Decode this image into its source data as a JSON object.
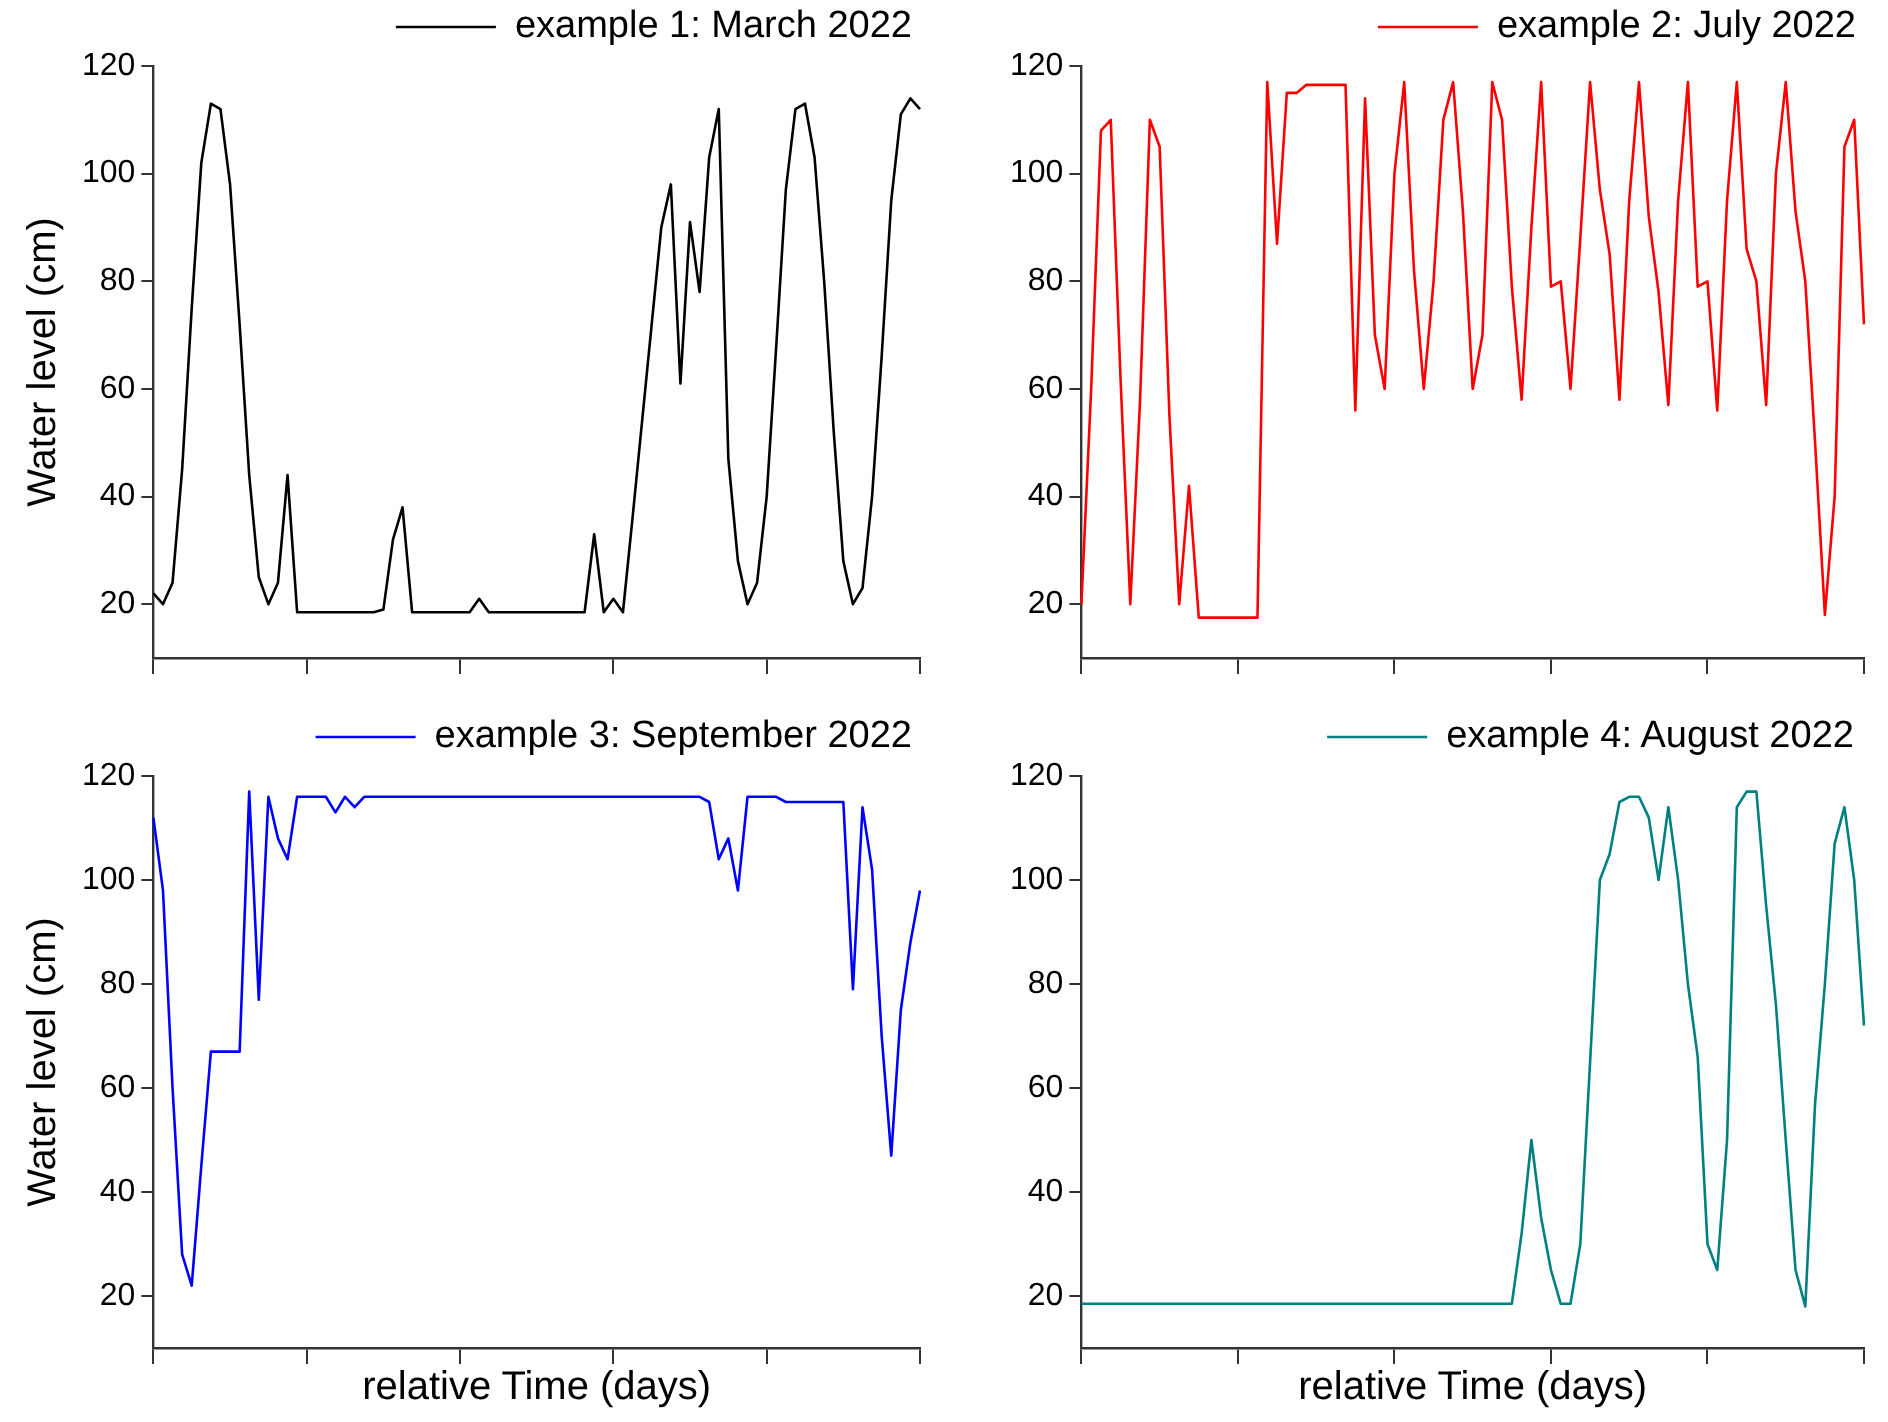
{
  "chart_data": [
    {
      "type": "line",
      "ylabel": "Water level (cm)",
      "categories": [
        null,
        null,
        null,
        null,
        null,
        null,
        null,
        null,
        null,
        null,
        null,
        null,
        null,
        null,
        null,
        null,
        null,
        null,
        null,
        null,
        null,
        null,
        null,
        null,
        null,
        null,
        null,
        null,
        null,
        null,
        null,
        null,
        null,
        null,
        null,
        null,
        null,
        null,
        null,
        null,
        null,
        null,
        null,
        null,
        null,
        null,
        null,
        null,
        null,
        null,
        null,
        null,
        null,
        null,
        null,
        null,
        null,
        null,
        null,
        null,
        null,
        null,
        null,
        null,
        null,
        null,
        null,
        null,
        null,
        null,
        null,
        null,
        null,
        null,
        null,
        null,
        null,
        null,
        null,
        null,
        null
      ],
      "series": [
        {
          "name": "example 1: March 2022",
          "color": "#000000",
          "values": [
            22,
            20,
            24,
            45,
            75,
            102,
            113,
            112,
            98,
            72,
            44,
            25,
            20,
            24,
            44,
            18.5,
            18.5,
            18.5,
            18.5,
            18.5,
            18.5,
            18.5,
            18.5,
            18.5,
            19,
            32,
            38,
            18.5,
            18.5,
            18.5,
            18.5,
            18.5,
            18.5,
            18.5,
            21,
            18.5,
            18.5,
            18.5,
            18.5,
            18.5,
            18.5,
            18.5,
            18.5,
            18.5,
            18.5,
            18.5,
            33,
            18.5,
            21,
            18.5,
            36,
            54,
            72,
            90,
            98,
            61,
            91,
            78,
            103,
            112,
            47,
            28,
            20,
            24,
            40,
            68,
            97,
            112,
            113,
            103,
            80,
            52,
            28,
            20,
            23,
            40,
            66,
            95,
            111,
            114,
            112
          ]
        }
      ],
      "ylim": [
        10,
        120
      ],
      "yticks": [
        20,
        40,
        60,
        80,
        100,
        120
      ],
      "grid": false,
      "legend": "top right",
      "marker": "none",
      "line_style": "solid",
      "tick_labels": "y"
    },
    {
      "type": "line",
      "categories": [
        null,
        null,
        null,
        null,
        null,
        null,
        null,
        null,
        null,
        null,
        null,
        null,
        null,
        null,
        null,
        null,
        null,
        null,
        null,
        null,
        null,
        null,
        null,
        null,
        null,
        null,
        null,
        null,
        null,
        null,
        null,
        null,
        null,
        null,
        null,
        null,
        null,
        null,
        null,
        null,
        null,
        null,
        null,
        null,
        null,
        null,
        null,
        null,
        null,
        null,
        null,
        null,
        null,
        null,
        null,
        null,
        null,
        null,
        null,
        null,
        null,
        null,
        null,
        null,
        null,
        null,
        null,
        null,
        null,
        null,
        null,
        null,
        null,
        null,
        null,
        null,
        null,
        null,
        null,
        null,
        null
      ],
      "series": [
        {
          "name": "example 2: July 2022",
          "color": "#ff0000",
          "values": [
            20,
            60,
            108,
            110,
            62,
            20,
            58,
            110,
            105,
            55,
            20,
            42,
            17.5,
            17.5,
            17.5,
            17.5,
            17.5,
            17.5,
            17.5,
            117,
            87,
            115,
            115,
            116.5,
            116.5,
            116.5,
            116.5,
            116.5,
            56,
            114,
            70,
            60,
            100,
            117,
            82,
            60,
            80,
            110,
            117,
            93,
            60,
            70,
            117,
            110,
            79,
            58,
            90,
            117,
            79,
            80,
            60,
            88,
            117,
            97,
            85,
            58,
            95,
            117,
            92,
            78,
            57,
            95,
            117,
            79,
            80,
            56,
            95,
            117,
            86,
            80,
            57,
            100,
            117,
            93,
            80,
            50,
            18,
            40,
            105,
            110,
            72
          ]
        }
      ],
      "ylim": [
        10,
        120
      ],
      "yticks": [
        20,
        40,
        60,
        80,
        100,
        120
      ],
      "grid": false,
      "legend": "top right",
      "marker": "none",
      "line_style": "solid",
      "tick_labels": "y"
    },
    {
      "type": "line",
      "xlabel": "relative Time (days)",
      "ylabel": "Water level (cm)",
      "categories": [
        null,
        null,
        null,
        null,
        null,
        null,
        null,
        null,
        null,
        null,
        null,
        null,
        null,
        null,
        null,
        null,
        null,
        null,
        null,
        null,
        null,
        null,
        null,
        null,
        null,
        null,
        null,
        null,
        null,
        null,
        null,
        null,
        null,
        null,
        null,
        null,
        null,
        null,
        null,
        null,
        null,
        null,
        null,
        null,
        null,
        null,
        null,
        null,
        null,
        null,
        null,
        null,
        null,
        null,
        null,
        null,
        null,
        null,
        null,
        null,
        null,
        null,
        null,
        null,
        null,
        null,
        null,
        null,
        null,
        null,
        null,
        null,
        null,
        null,
        null,
        null,
        null,
        null,
        null,
        null,
        null
      ],
      "series": [
        {
          "name": "example 3: September 2022",
          "color": "#0000ff",
          "values": [
            112,
            98,
            60,
            28,
            22,
            45,
            67,
            67,
            67,
            67,
            117,
            77,
            116,
            108,
            104,
            116,
            116,
            116,
            116,
            113,
            116,
            114,
            116,
            116,
            116,
            116,
            116,
            116,
            116,
            116,
            116,
            116,
            116,
            116,
            116,
            116,
            116,
            116,
            116,
            116,
            116,
            116,
            116,
            116,
            116,
            116,
            116,
            116,
            116,
            116,
            116,
            116,
            116,
            116,
            116,
            116,
            116,
            116,
            115,
            104,
            108,
            98,
            116,
            116,
            116,
            116,
            115,
            115,
            115,
            115,
            115,
            115,
            115,
            79,
            114,
            102,
            70,
            47,
            75,
            88,
            98
          ]
        }
      ],
      "ylim": [
        10,
        120
      ],
      "yticks": [
        20,
        40,
        60,
        80,
        100,
        120
      ],
      "grid": false,
      "legend": "top right",
      "marker": "none",
      "line_style": "solid",
      "tick_labels": "y"
    },
    {
      "type": "line",
      "xlabel": "relative Time (days)",
      "categories": [
        null,
        null,
        null,
        null,
        null,
        null,
        null,
        null,
        null,
        null,
        null,
        null,
        null,
        null,
        null,
        null,
        null,
        null,
        null,
        null,
        null,
        null,
        null,
        null,
        null,
        null,
        null,
        null,
        null,
        null,
        null,
        null,
        null,
        null,
        null,
        null,
        null,
        null,
        null,
        null,
        null,
        null,
        null,
        null,
        null,
        null,
        null,
        null,
        null,
        null,
        null,
        null,
        null,
        null,
        null,
        null,
        null,
        null,
        null,
        null,
        null,
        null,
        null,
        null,
        null,
        null,
        null,
        null,
        null,
        null,
        null,
        null,
        null,
        null,
        null,
        null,
        null,
        null,
        null,
        null,
        null
      ],
      "series": [
        {
          "name": "example 4: August 2022",
          "color": "#008080",
          "values": [
            18.5,
            18.5,
            18.5,
            18.5,
            18.5,
            18.5,
            18.5,
            18.5,
            18.5,
            18.5,
            18.5,
            18.5,
            18.5,
            18.5,
            18.5,
            18.5,
            18.5,
            18.5,
            18.5,
            18.5,
            18.5,
            18.5,
            18.5,
            18.5,
            18.5,
            18.5,
            18.5,
            18.5,
            18.5,
            18.5,
            18.5,
            18.5,
            18.5,
            18.5,
            18.5,
            18.5,
            18.5,
            18.5,
            18.5,
            18.5,
            18.5,
            18.5,
            18.5,
            18.5,
            18.5,
            32,
            50,
            35,
            25,
            18.5,
            18.5,
            30,
            65,
            100,
            105,
            115,
            116,
            116,
            112,
            100,
            114,
            100,
            80,
            66,
            30,
            25,
            50,
            114,
            117,
            117,
            95,
            76,
            50,
            25,
            18,
            57,
            80,
            107,
            114,
            100,
            72
          ]
        }
      ],
      "ylim": [
        10,
        120
      ],
      "yticks": [
        20,
        40,
        60,
        80,
        100,
        120
      ],
      "grid": false,
      "legend": "top right",
      "marker": "none",
      "line_style": "solid",
      "tick_labels": "y"
    }
  ]
}
